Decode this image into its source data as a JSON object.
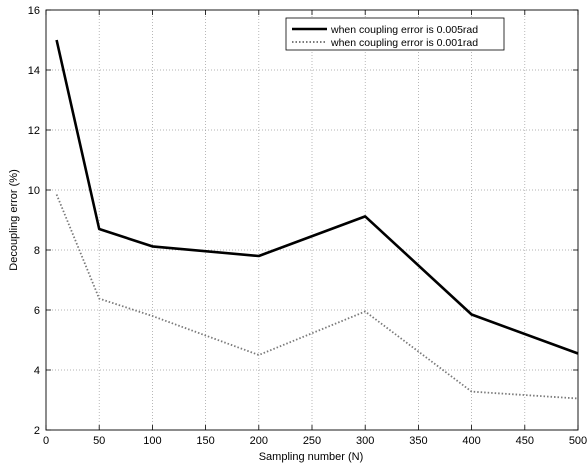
{
  "chart_data": {
    "type": "line",
    "title": "",
    "xlabel": "Sampling number (N)",
    "ylabel": "Decoupling error (%)",
    "xlim": [
      0,
      500
    ],
    "ylim": [
      2,
      16
    ],
    "xticks": [
      0,
      50,
      100,
      150,
      200,
      250,
      300,
      350,
      400,
      450,
      500
    ],
    "yticks": [
      2,
      4,
      6,
      8,
      10,
      12,
      14,
      16
    ],
    "grid": true,
    "legend_position": "top-right",
    "series": [
      {
        "name": "when coupling error is 0.005rad",
        "style": "solid",
        "color": "#000000",
        "x": [
          10,
          50,
          100,
          200,
          300,
          400,
          500
        ],
        "y": [
          15.0,
          8.7,
          8.12,
          7.8,
          9.12,
          5.85,
          4.55
        ]
      },
      {
        "name": "when coupling error is 0.001rad",
        "style": "dotted",
        "color": "#7a7a7a",
        "x": [
          10,
          50,
          100,
          200,
          300,
          400,
          500
        ],
        "y": [
          9.85,
          6.38,
          5.8,
          4.5,
          5.95,
          3.28,
          3.05
        ]
      }
    ]
  }
}
